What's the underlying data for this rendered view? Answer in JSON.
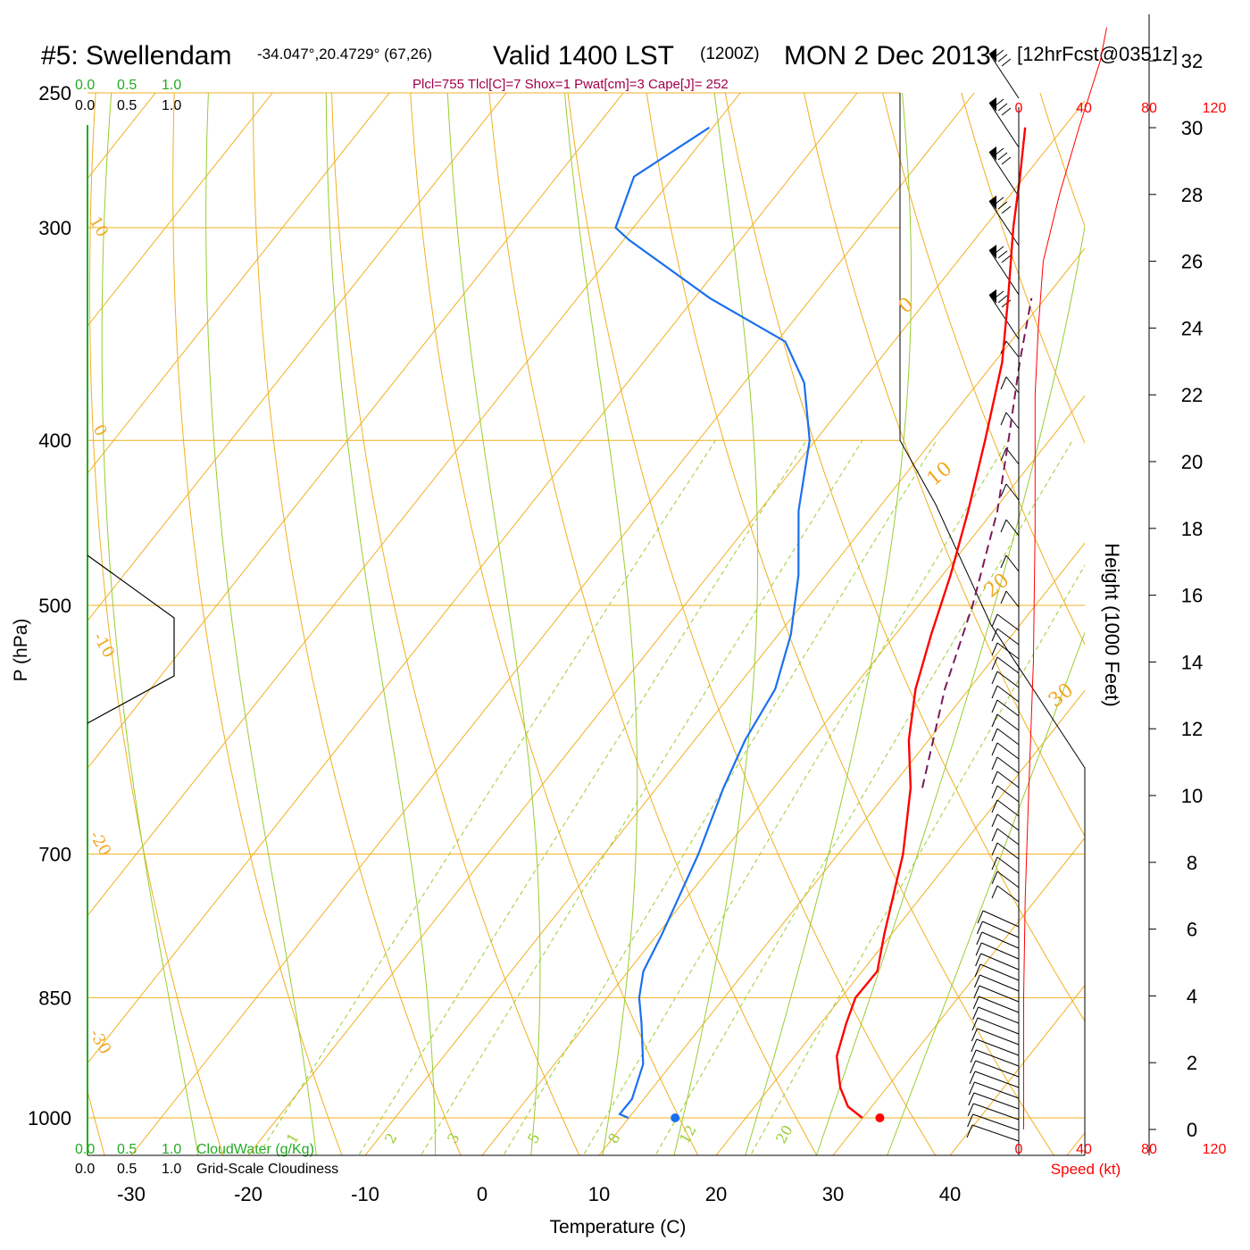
{
  "header": {
    "station": "#5: Swellendam",
    "coords": "-34.047°,20.4729° (67,26)",
    "valid": "Valid 1400 LST",
    "zulu": "(1200Z)",
    "date": "MON 2 Dec 2013",
    "forecast": "[12hrFcst@0351z]",
    "params": "Plcl=755 Tlcl[C]=7 Shox=1 Pwat[cm]=3 Cape[J]= 252"
  },
  "colors": {
    "isobar": "#f0b020",
    "isotherm": "#f0b020",
    "dry_adiabat": "#99cc33",
    "mixing_ratio": "#99cc33",
    "temperature": "#ff0000",
    "dewpoint": "#1a6ff0",
    "parcel": "#7a1a5a",
    "wind_speed": "#ff0000",
    "cloud": "#000000",
    "cloud_axis": "#22aa22"
  },
  "chart_data": {
    "type": "skew-T log-P sounding",
    "ylabel": "P (hPa)",
    "xlabel": "Temperature (C)",
    "y_scale": "log",
    "pressure_ticks": [
      "250",
      "300",
      "400",
      "500",
      "700",
      "850",
      "1000"
    ],
    "temperature_ticks": [
      "-30",
      "-20",
      "-10",
      "0",
      "10",
      "20",
      "30",
      "40"
    ],
    "isotherm_labels": [
      "10",
      "0",
      "-10",
      "-20",
      "-30",
      "0",
      "10",
      "20",
      "30"
    ],
    "mixing_ratio_labels": [
      "1",
      "2",
      "3",
      "5",
      "8",
      "12",
      "20"
    ],
    "temperature_profile": [
      {
        "p": 1000,
        "t": 32.5
      },
      {
        "p": 985,
        "t": 30.5
      },
      {
        "p": 960,
        "t": 28.5
      },
      {
        "p": 920,
        "t": 26
      },
      {
        "p": 880,
        "t": 24.5
      },
      {
        "p": 850,
        "t": 23.5
      },
      {
        "p": 820,
        "t": 23.5
      },
      {
        "p": 780,
        "t": 21.5
      },
      {
        "p": 700,
        "t": 17.5
      },
      {
        "p": 640,
        "t": 13.5
      },
      {
        "p": 600,
        "t": 10
      },
      {
        "p": 560,
        "t": 7
      },
      {
        "p": 520,
        "t": 4.5
      },
      {
        "p": 480,
        "t": 2
      },
      {
        "p": 440,
        "t": -1
      },
      {
        "p": 400,
        "t": -4.5
      },
      {
        "p": 360,
        "t": -8.5
      },
      {
        "p": 330,
        "t": -12.5
      },
      {
        "p": 300,
        "t": -17
      },
      {
        "p": 280,
        "t": -20
      },
      {
        "p": 262,
        "t": -23
      }
    ],
    "dewpoint_profile": [
      {
        "p": 1000,
        "t": 12.5
      },
      {
        "p": 995,
        "t": 11.5
      },
      {
        "p": 975,
        "t": 11.5
      },
      {
        "p": 930,
        "t": 10
      },
      {
        "p": 880,
        "t": 7
      },
      {
        "p": 850,
        "t": 5
      },
      {
        "p": 820,
        "t": 3.5
      },
      {
        "p": 780,
        "t": 2.5
      },
      {
        "p": 700,
        "t": 0
      },
      {
        "p": 640,
        "t": -2.5
      },
      {
        "p": 600,
        "t": -4
      },
      {
        "p": 560,
        "t": -5
      },
      {
        "p": 520,
        "t": -7.5
      },
      {
        "p": 480,
        "t": -11
      },
      {
        "p": 440,
        "t": -15.5
      },
      {
        "p": 400,
        "t": -19.5
      },
      {
        "p": 370,
        "t": -24
      },
      {
        "p": 350,
        "t": -28.5
      },
      {
        "p": 330,
        "t": -38
      },
      {
        "p": 305,
        "t": -49
      },
      {
        "p": 300,
        "t": -51
      },
      {
        "p": 280,
        "t": -53
      },
      {
        "p": 262,
        "t": -50
      }
    ],
    "parcel_profile": [
      {
        "p": 640,
        "t": 14.5
      },
      {
        "p": 560,
        "t": 9.5
      },
      {
        "p": 500,
        "t": 6
      },
      {
        "p": 440,
        "t": 1.5
      },
      {
        "p": 400,
        "t": -2.5
      },
      {
        "p": 360,
        "t": -7
      },
      {
        "p": 330,
        "t": -10.5
      }
    ],
    "surface_points": {
      "temperature": 34,
      "dewpoint": 16.5
    },
    "height_axis": {
      "label": "Height (1000 Feet)",
      "ticks": [
        "0",
        "2",
        "4",
        "6",
        "8",
        "10",
        "12",
        "14",
        "16",
        "18",
        "20",
        "22",
        "24",
        "26",
        "28",
        "30",
        "32"
      ]
    },
    "wind_speed": {
      "label": "Speed (kt)",
      "ticks": [
        "0",
        "40",
        "80",
        "120"
      ],
      "profile": [
        {
          "h": 0,
          "kt": 3
        },
        {
          "h": 4,
          "kt": 3
        },
        {
          "h": 7,
          "kt": 4
        },
        {
          "h": 10,
          "kt": 6
        },
        {
          "h": 14,
          "kt": 9
        },
        {
          "h": 18,
          "kt": 10
        },
        {
          "h": 22,
          "kt": 10
        },
        {
          "h": 24,
          "kt": 12
        },
        {
          "h": 26,
          "kt": 15
        },
        {
          "h": 28,
          "kt": 25
        },
        {
          "h": 30,
          "kt": 37
        },
        {
          "h": 32,
          "kt": 50
        },
        {
          "h": 33,
          "kt": 54
        }
      ]
    },
    "cloud_axis": {
      "cloud_water_label": "CloudWater (g/Kg)",
      "cloudiness_label": "Grid-Scale Cloudiness",
      "ticks": [
        "0.0",
        "0.5",
        "1.0"
      ]
    }
  }
}
